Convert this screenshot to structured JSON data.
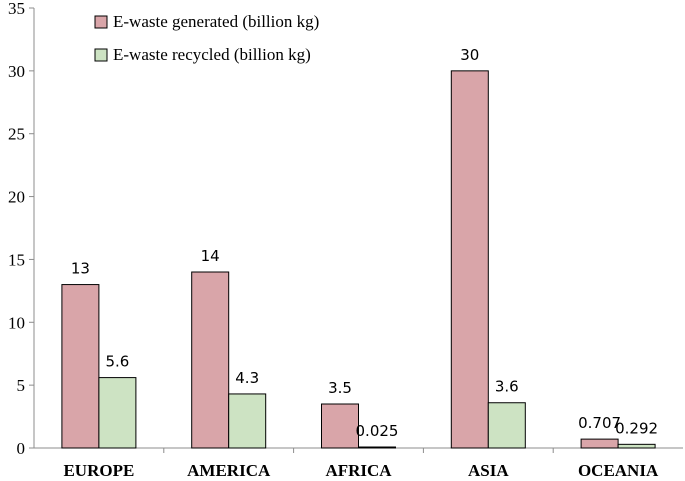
{
  "chart_data": {
    "type": "bar",
    "categories": [
      "EUROPE",
      "AMERICA",
      "AFRICA",
      "ASIA",
      "OCEANIA"
    ],
    "series": [
      {
        "name": "E-waste generated (billion kg)",
        "values": [
          13,
          14,
          3.5,
          30,
          0.707
        ],
        "labels": [
          "13",
          "14",
          "3.5",
          "30",
          "0.707"
        ],
        "color": "#d9a5a9"
      },
      {
        "name": "E-waste recycled (billion kg)",
        "values": [
          5.6,
          4.3,
          0.025,
          3.6,
          0.292
        ],
        "labels": [
          "5.6",
          "4.3",
          "0.025",
          "3.6",
          "0.292"
        ],
        "color": "#cde3c3"
      }
    ],
    "ylim": [
      0,
      35
    ],
    "yticks": [
      "0",
      "5",
      "10",
      "15",
      "20",
      "25",
      "30",
      "35"
    ],
    "title": "",
    "xlabel": "",
    "ylabel": "",
    "grid": false,
    "legend": "top-left"
  }
}
